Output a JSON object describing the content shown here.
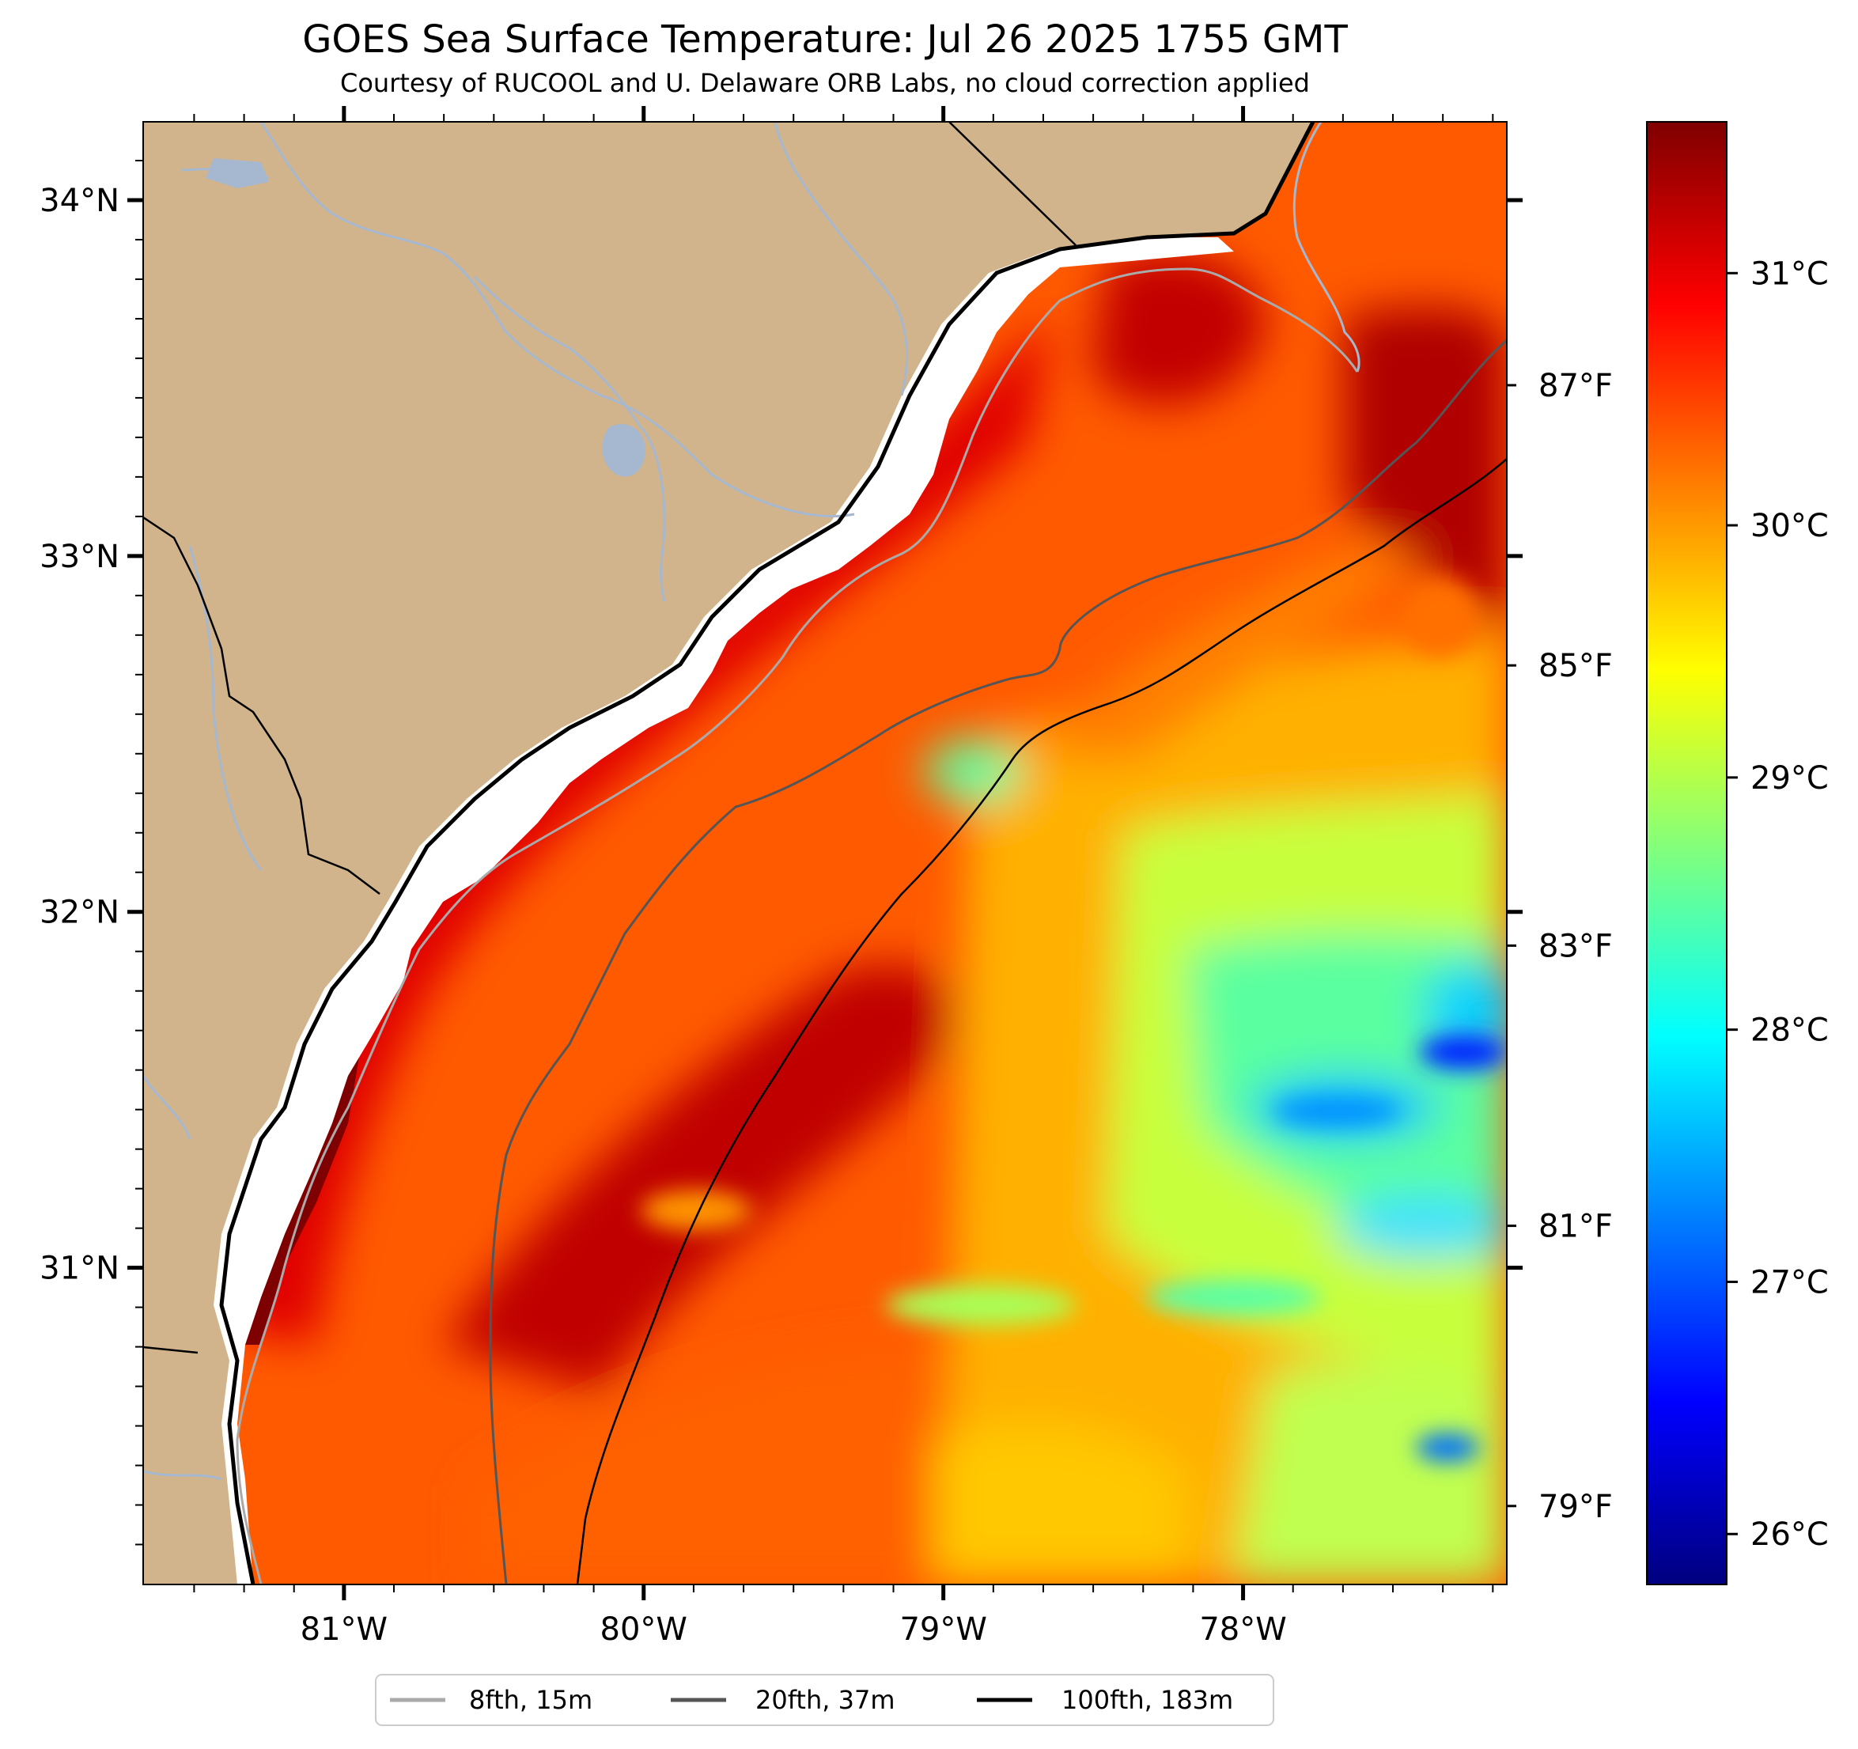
{
  "title": "GOES Sea Surface Temperature: Jul 26 2025 1755 GMT",
  "subtitle": "Courtesy of RUCOOL and U. Delaware ORB Labs, no cloud correction applied",
  "map": {
    "lon_range": [
      -81.67,
      -77.12
    ],
    "lat_range": [
      30.11,
      34.22
    ],
    "lon_ticks": [
      {
        "value": -81,
        "label": "81°W"
      },
      {
        "value": -80,
        "label": "80°W"
      },
      {
        "value": -79,
        "label": "79°W"
      },
      {
        "value": -78,
        "label": "78°W"
      }
    ],
    "lat_ticks": [
      {
        "value": 34,
        "label": "34°N"
      },
      {
        "value": 33,
        "label": "33°N"
      },
      {
        "value": 32,
        "label": "32°N"
      },
      {
        "value": 31,
        "label": "31°N"
      }
    ],
    "fahrenheit_ticks": [
      {
        "value": 87,
        "label": "87°F"
      },
      {
        "value": 85,
        "label": "85°F"
      },
      {
        "value": 83,
        "label": "83°F"
      },
      {
        "value": 81,
        "label": "81°F"
      },
      {
        "value": 79,
        "label": "79°F"
      }
    ],
    "colors": {
      "land": "#d2b48c",
      "river": "#a5b8d0",
      "isobath_8fth": "#aaaaaa",
      "isobath_20fth": "#555555",
      "isobath_100fth": "#000000",
      "coast": "#000000"
    }
  },
  "colorbar": {
    "range_c": [
      25.8,
      31.6
    ],
    "ticks": [
      {
        "value": 31,
        "label": "31°C"
      },
      {
        "value": 30,
        "label": "30°C"
      },
      {
        "value": 29,
        "label": "29°C"
      },
      {
        "value": 28,
        "label": "28°C"
      },
      {
        "value": 27,
        "label": "27°C"
      },
      {
        "value": 26,
        "label": "26°C"
      }
    ],
    "colormap": [
      "#00007f",
      "#0000ff",
      "#007fff",
      "#00ffff",
      "#7fff7f",
      "#ffff00",
      "#ff7f00",
      "#ff0000",
      "#7f0000"
    ]
  },
  "legend": {
    "items": [
      {
        "label": "8fth, 15m",
        "color": "#aaaaaa"
      },
      {
        "label": "20fth, 37m",
        "color": "#555555"
      },
      {
        "label": "100fth, 183m",
        "color": "#000000"
      }
    ]
  }
}
